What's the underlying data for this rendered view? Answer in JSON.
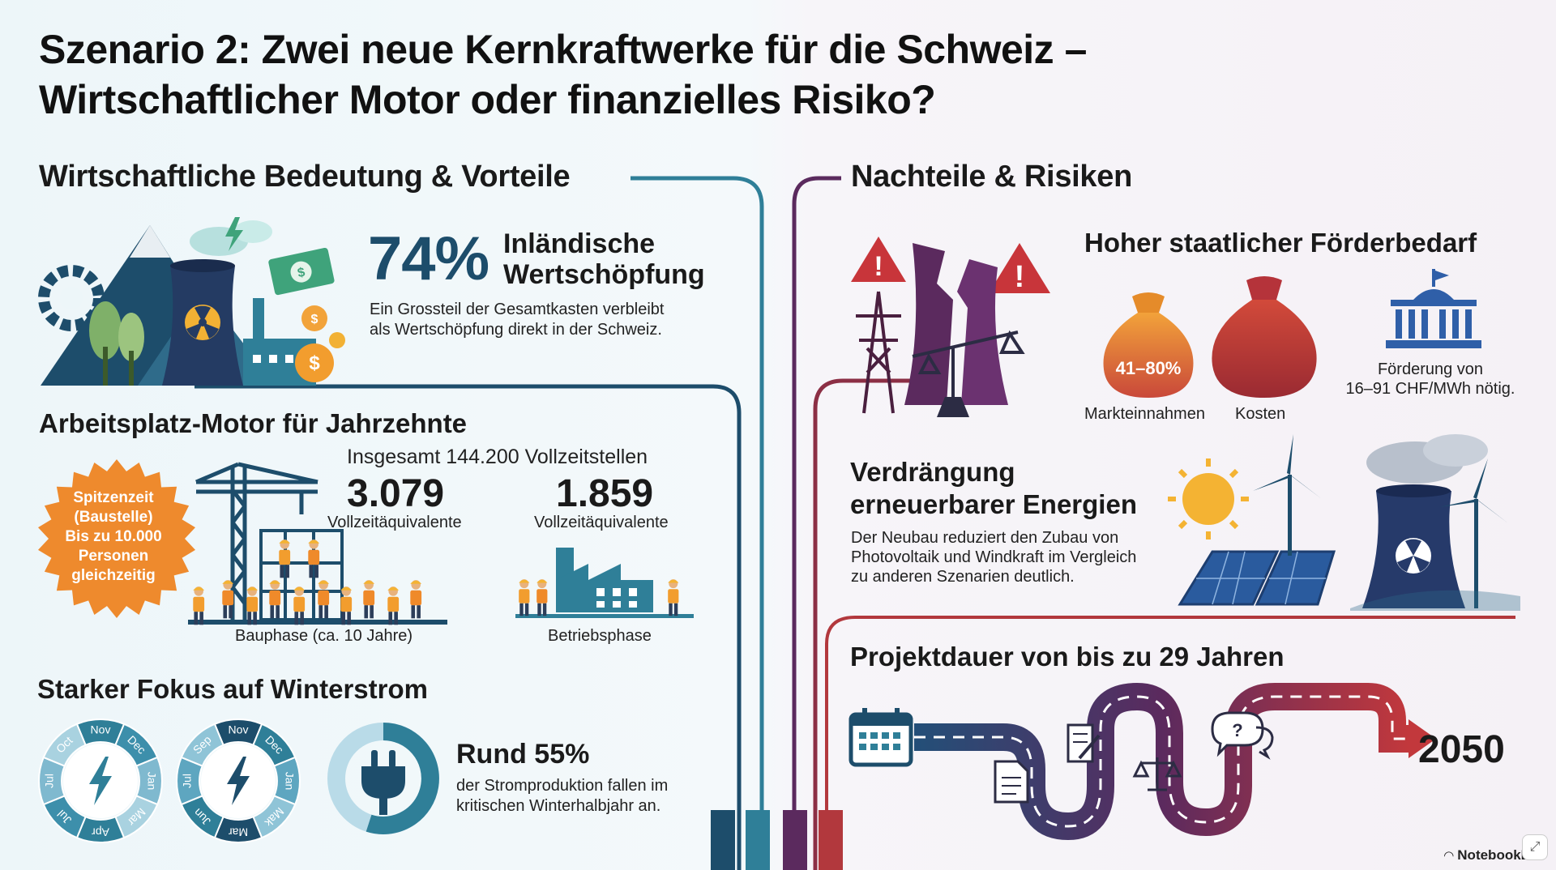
{
  "title": {
    "line1": "Szenario 2: Zwei neue Kernkraftwerke für die Schweiz –",
    "line2": "Wirtschaftlicher Motor oder finanzielles Risiko?"
  },
  "left": {
    "heading": "Wirtschaftliche Bedeutung & Vorteile",
    "value_added": {
      "percent": "74%",
      "label_line1": "Inländische",
      "label_line2": "Wertschöpfung",
      "desc_line1": "Ein Grossteil der Gesamtkasten verbleibt",
      "desc_line2": "als Wertschöpfung direkt in der Schweiz."
    },
    "jobs": {
      "heading": "Arbeitsplatz-Motor für Jahrzehnte",
      "total": "Insgesamt 144.200 Vollzeitstellen",
      "badge": [
        "Spitzenzeit",
        "(Baustelle)",
        "Bis zu 10.000",
        "Personen",
        "gleichzeitig"
      ],
      "construction_value": "3.079",
      "construction_unit": "Vollzeitäquivalente",
      "construction_label": "Bauphase (ca. 10 Jahre)",
      "operation_value": "1.859",
      "operation_unit": "Vollzeitäquivalente",
      "operation_label": "Betriebsphase"
    },
    "winter": {
      "heading": "Starker Fokus auf Winterstrom",
      "dial1_months": [
        "Nov",
        "Dec",
        "Jan",
        "Mar",
        "Apr",
        "Jul",
        "Jul",
        "Oct"
      ],
      "dial2_months": [
        "Nov",
        "Dec",
        "Jan",
        "Mak",
        "Mar",
        "Jun",
        "Jul",
        "Sep"
      ],
      "share_fraction": 0.55,
      "value": "Rund 55%",
      "desc_line1": "der Stromproduktion fallen im",
      "desc_line2": "kritischen Winterhalbjahr an."
    }
  },
  "right": {
    "heading": "Nachteile & Risiken",
    "subsidy": {
      "heading": "Hoher staatlicher Förderbedarf",
      "bag_range": "41–80%",
      "bag1_label": "Markteinnahmen",
      "bag2_label": "Kosten",
      "desc_line1": "Förderung von",
      "desc_line2": "16–91 CHF/MWh nötig."
    },
    "displacement": {
      "heading_line1": "Verdrängung",
      "heading_line2": "erneuerbarer Energien",
      "desc_line1": "Der Neubau reduziert den Zubau von",
      "desc_line2": "Photovoltaik und Windkraft im Vergleich",
      "desc_line3": "zu anderen Szenarien deutlich."
    },
    "duration": {
      "heading": "Projektdauer von bis zu 29 Jahren",
      "end_year": "2050"
    }
  },
  "footer": {
    "brand": "NotebookLM"
  },
  "colors": {
    "teal_dark": "#1d4d6b",
    "teal": "#2f7f98",
    "orange": "#ef8a2a",
    "purple": "#5b2a5e",
    "red": "#b2383d"
  }
}
